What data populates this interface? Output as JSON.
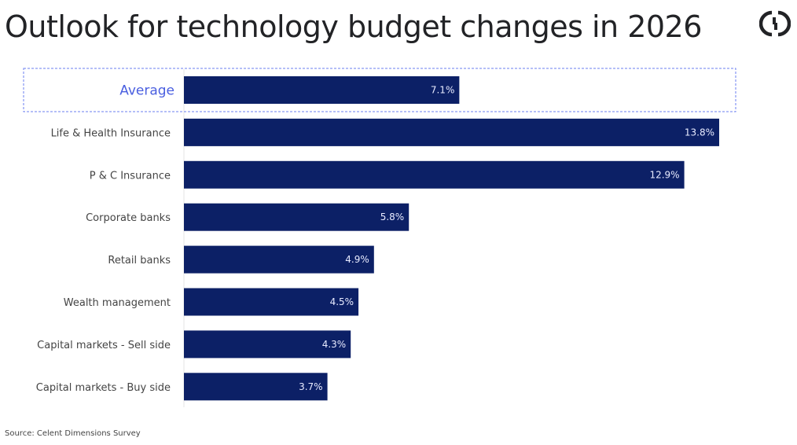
{
  "header": {
    "title": "Outlook for technology budget changes in 2026",
    "logo_icon": "celent-logo-icon"
  },
  "footer": {
    "source": "Source: Celent Dimensions Survey"
  },
  "colors": {
    "bar": "#0c2066",
    "highlight_border": "#6b7ff0",
    "highlight_label": "#4a5fe0",
    "value_label": "#e8ebff"
  },
  "chart_data": {
    "type": "bar",
    "orientation": "horizontal",
    "title": "Outlook for technology budget changes in 2026",
    "xlabel": "",
    "ylabel": "",
    "xlim": [
      0,
      15
    ],
    "grid": false,
    "categories": [
      "Average",
      "Life & Health Insurance",
      "P & C Insurance",
      "Corporate banks",
      "Retail banks",
      "Wealth management",
      "Capital markets - Sell side",
      "Capital markets - Buy side"
    ],
    "values": [
      7.1,
      13.8,
      12.9,
      5.8,
      4.9,
      4.5,
      4.3,
      3.7
    ],
    "value_labels": [
      "7.1%",
      "13.8%",
      "12.9%",
      "5.8%",
      "4.9%",
      "4.5%",
      "4.3%",
      "3.7%"
    ],
    "highlighted_category": "Average",
    "annotations": [
      "Source: Celent Dimensions Survey"
    ]
  }
}
